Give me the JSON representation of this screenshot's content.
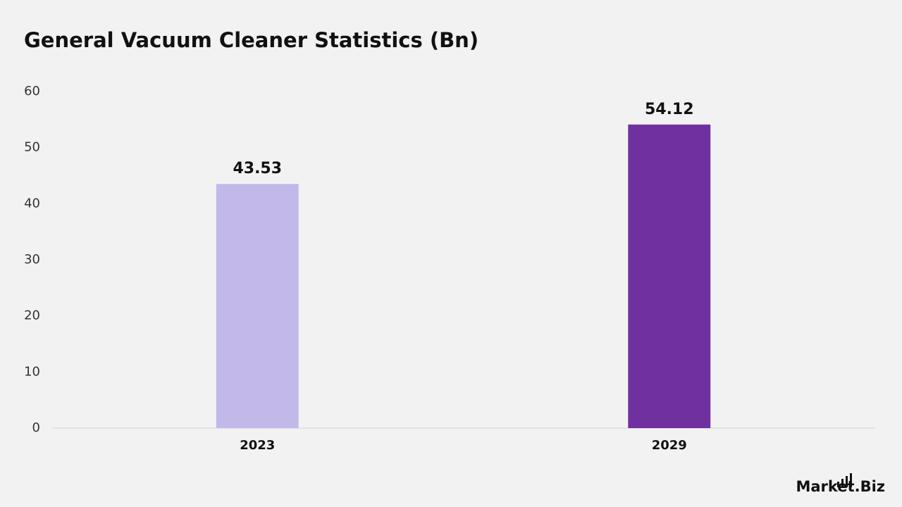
{
  "chart_data": {
    "type": "bar",
    "title": "General Vacuum Cleaner Statistics (Bn)",
    "categories": [
      "2023",
      "2029"
    ],
    "values": [
      43.53,
      54.12
    ],
    "colors": [
      "#c2b9ea",
      "#7030a0"
    ],
    "ylim": [
      0,
      60
    ],
    "yticks": [
      0,
      10,
      20,
      30,
      40,
      50,
      60
    ],
    "grid": false
  },
  "logo": "Market.Biz"
}
